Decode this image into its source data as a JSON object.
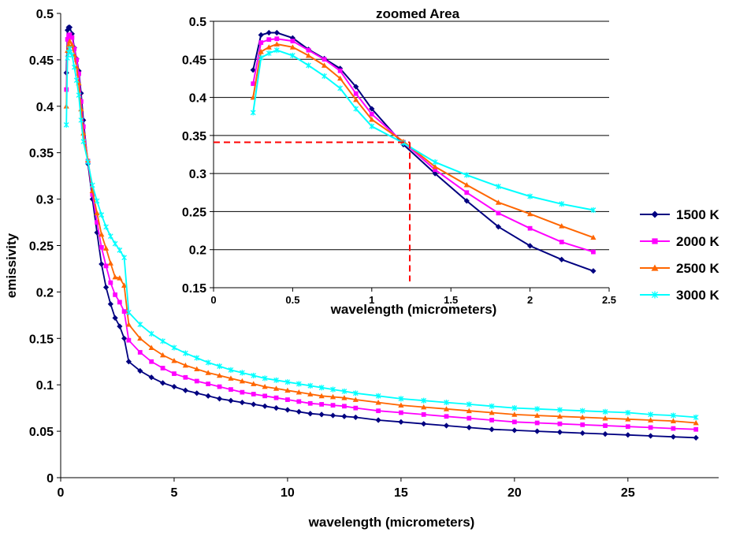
{
  "chart_data": [
    {
      "type": "line",
      "panel": "main",
      "title": "",
      "xlabel": "wavelength (micrometers)",
      "ylabel": "emissivity",
      "xlim": [
        0,
        29
      ],
      "ylim": [
        0,
        0.5
      ],
      "xticks": [
        0,
        5,
        10,
        15,
        20,
        25
      ],
      "yticks": [
        0,
        0.05,
        0.1,
        0.15,
        0.2,
        0.25,
        0.3,
        0.35,
        0.4,
        0.45,
        0.5
      ],
      "grid": false,
      "legend": "right",
      "series": [
        {
          "name": "1500 K",
          "color": "#000080",
          "marker": "diamond",
          "x": [
            0.25,
            0.3,
            0.35,
            0.4,
            0.5,
            0.6,
            0.7,
            0.8,
            0.9,
            1.0,
            1.2,
            1.4,
            1.6,
            1.8,
            2.0,
            2.2,
            2.4,
            2.6,
            2.8,
            3.0,
            3.5,
            4,
            4.5,
            5,
            5.5,
            6,
            6.5,
            7,
            7.5,
            8,
            8.5,
            9,
            9.5,
            10,
            10.5,
            11,
            11.5,
            12,
            12.5,
            13,
            14,
            15,
            16,
            17,
            18,
            19,
            20,
            21,
            22,
            23,
            24,
            25,
            26,
            27,
            28
          ],
          "y": [
            0.436,
            0.482,
            0.485,
            0.485,
            0.478,
            0.463,
            0.451,
            0.438,
            0.414,
            0.385,
            0.338,
            0.3,
            0.264,
            0.23,
            0.205,
            0.187,
            0.172,
            0.163,
            0.15,
            0.125,
            0.115,
            0.108,
            0.102,
            0.098,
            0.094,
            0.091,
            0.088,
            0.085,
            0.083,
            0.081,
            0.079,
            0.077,
            0.075,
            0.073,
            0.071,
            0.069,
            0.068,
            0.067,
            0.066,
            0.065,
            0.062,
            0.06,
            0.058,
            0.056,
            0.054,
            0.052,
            0.051,
            0.05,
            0.049,
            0.048,
            0.047,
            0.046,
            0.045,
            0.044,
            0.043
          ]
        },
        {
          "name": "2000 K",
          "color": "#FF00FF",
          "marker": "square",
          "x": [
            0.25,
            0.3,
            0.35,
            0.4,
            0.5,
            0.6,
            0.7,
            0.8,
            0.9,
            1.0,
            1.2,
            1.4,
            1.6,
            1.8,
            2.0,
            2.2,
            2.4,
            2.6,
            2.8,
            3.0,
            3.5,
            4,
            4.5,
            5,
            5.5,
            6,
            6.5,
            7,
            7.5,
            8,
            8.5,
            9,
            9.5,
            10,
            10.5,
            11,
            11.5,
            12,
            12.5,
            13,
            14,
            15,
            16,
            17,
            18,
            19,
            20,
            21,
            22,
            23,
            24,
            25,
            26,
            27,
            28
          ],
          "y": [
            0.418,
            0.472,
            0.476,
            0.477,
            0.474,
            0.462,
            0.45,
            0.435,
            0.405,
            0.378,
            0.341,
            0.305,
            0.275,
            0.248,
            0.228,
            0.21,
            0.197,
            0.189,
            0.179,
            0.148,
            0.135,
            0.125,
            0.118,
            0.112,
            0.108,
            0.104,
            0.101,
            0.098,
            0.095,
            0.092,
            0.09,
            0.088,
            0.086,
            0.084,
            0.082,
            0.08,
            0.079,
            0.078,
            0.077,
            0.075,
            0.072,
            0.07,
            0.068,
            0.066,
            0.064,
            0.062,
            0.06,
            0.059,
            0.058,
            0.057,
            0.056,
            0.055,
            0.054,
            0.053,
            0.052
          ]
        },
        {
          "name": "2500 K",
          "color": "#FF6600",
          "marker": "triangle",
          "x": [
            0.25,
            0.3,
            0.35,
            0.4,
            0.5,
            0.6,
            0.7,
            0.8,
            0.9,
            1.0,
            1.2,
            1.4,
            1.6,
            1.8,
            2.0,
            2.2,
            2.4,
            2.6,
            2.8,
            3.0,
            3.5,
            4,
            4.5,
            5,
            5.5,
            6,
            6.5,
            7,
            7.5,
            8,
            8.5,
            9,
            9.5,
            10,
            10.5,
            11,
            11.5,
            12,
            12.5,
            13,
            14,
            15,
            16,
            17,
            18,
            19,
            20,
            21,
            22,
            23,
            24,
            25,
            26,
            27,
            28
          ],
          "y": [
            0.4,
            0.46,
            0.466,
            0.47,
            0.466,
            0.455,
            0.442,
            0.425,
            0.397,
            0.371,
            0.342,
            0.309,
            0.285,
            0.262,
            0.247,
            0.231,
            0.216,
            0.215,
            0.207,
            0.165,
            0.15,
            0.14,
            0.132,
            0.126,
            0.121,
            0.117,
            0.113,
            0.11,
            0.107,
            0.104,
            0.101,
            0.098,
            0.096,
            0.094,
            0.092,
            0.09,
            0.088,
            0.087,
            0.086,
            0.084,
            0.081,
            0.078,
            0.076,
            0.074,
            0.072,
            0.07,
            0.068,
            0.067,
            0.066,
            0.065,
            0.064,
            0.063,
            0.062,
            0.061,
            0.059
          ]
        },
        {
          "name": "3000 K",
          "color": "#00FFFF",
          "marker": "star",
          "x": [
            0.25,
            0.3,
            0.35,
            0.4,
            0.5,
            0.6,
            0.7,
            0.8,
            0.9,
            1.0,
            1.2,
            1.4,
            1.6,
            1.8,
            2.0,
            2.2,
            2.4,
            2.6,
            2.8,
            3.0,
            3.5,
            4,
            4.5,
            5,
            5.5,
            6,
            6.5,
            7,
            7.5,
            8,
            8.5,
            9,
            9.5,
            10,
            10.5,
            11,
            11.5,
            12,
            12.5,
            13,
            14,
            15,
            16,
            17,
            18,
            19,
            20,
            21,
            22,
            23,
            24,
            25,
            26,
            27,
            28
          ],
          "y": [
            0.38,
            0.452,
            0.458,
            0.462,
            0.455,
            0.442,
            0.428,
            0.412,
            0.385,
            0.362,
            0.34,
            0.315,
            0.298,
            0.283,
            0.27,
            0.26,
            0.252,
            0.245,
            0.237,
            0.178,
            0.165,
            0.155,
            0.147,
            0.14,
            0.134,
            0.129,
            0.124,
            0.12,
            0.116,
            0.113,
            0.11,
            0.107,
            0.105,
            0.103,
            0.101,
            0.099,
            0.097,
            0.095,
            0.093,
            0.091,
            0.088,
            0.085,
            0.083,
            0.081,
            0.079,
            0.077,
            0.075,
            0.074,
            0.073,
            0.072,
            0.071,
            0.07,
            0.068,
            0.067,
            0.065
          ]
        }
      ]
    },
    {
      "type": "line",
      "panel": "inset",
      "title": "zoomed Area",
      "xlabel": "wavelength (micrometers)",
      "ylabel": "",
      "xlim": [
        0,
        2.5
      ],
      "ylim": [
        0.15,
        0.5
      ],
      "xticks": [
        "0",
        "0.5",
        "1",
        "1.5",
        "2",
        "2.5"
      ],
      "yticks": [
        "0.15",
        "0.2",
        "0.25",
        "0.3",
        "0.35",
        "0.4",
        "0.45",
        "0.5"
      ],
      "grid": true,
      "crossover_guide": {
        "x": 1.24,
        "y": 0.341,
        "color": "#FF0000",
        "style": "dashed"
      }
    }
  ],
  "legend": {
    "entries": [
      {
        "label": "1500 K",
        "color": "#000080",
        "marker": "diamond"
      },
      {
        "label": "2000 K",
        "color": "#FF00FF",
        "marker": "square"
      },
      {
        "label": "2500 K",
        "color": "#FF6600",
        "marker": "triangle"
      },
      {
        "label": "3000 K",
        "color": "#00FFFF",
        "marker": "star"
      }
    ]
  }
}
